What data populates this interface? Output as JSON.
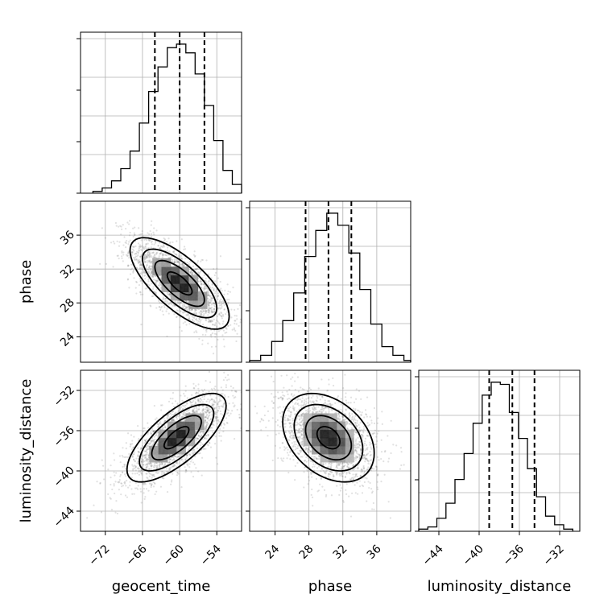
{
  "chart_data": {
    "type": "corner",
    "parameters": [
      {
        "name": "geocent_time",
        "label": "geocent_time",
        "range": [
          -76,
          -50
        ],
        "ticks": [
          -72,
          -66,
          -60,
          -54
        ],
        "quantiles": [
          -64.0,
          -60.0,
          -56.0
        ]
      },
      {
        "name": "phase",
        "label": "phase",
        "range": [
          21,
          40
        ],
        "ticks": [
          24,
          28,
          32,
          36
        ],
        "quantiles": [
          27.6,
          30.3,
          33.0
        ]
      },
      {
        "name": "luminosity_distance",
        "label": "luminosity_distance",
        "range": [
          -46,
          -30
        ],
        "ticks": [
          -44,
          -40,
          -36,
          -32
        ],
        "quantiles": [
          -39.0,
          -36.7,
          -34.5
        ]
      }
    ],
    "histograms": [
      {
        "param": "geocent_time",
        "bin_edges": [
          -74,
          -72.5,
          -71,
          -69.5,
          -68,
          -66.5,
          -65,
          -63.5,
          -62,
          -60.5,
          -59,
          -57.5,
          -56,
          -54.5,
          -53,
          -51.5,
          -50
        ],
        "counts": [
          1,
          3,
          7,
          14,
          24,
          40,
          58,
          72,
          83,
          85,
          80,
          68,
          50,
          30,
          13,
          5
        ]
      },
      {
        "param": "phase",
        "bin_edges": [
          21,
          22.3,
          23.6,
          24.9,
          26.2,
          27.5,
          28.8,
          30.1,
          31.4,
          32.7,
          34.0,
          35.3,
          36.6,
          37.9,
          39.2,
          40
        ],
        "counts": [
          1,
          4,
          12,
          24,
          40,
          61,
          76,
          86,
          79,
          63,
          42,
          22,
          9,
          4,
          1
        ]
      },
      {
        "param": "luminosity_distance",
        "bin_edges": [
          -46,
          -45.1,
          -44.2,
          -43.3,
          -42.4,
          -41.5,
          -40.6,
          -39.7,
          -38.8,
          -37.9,
          -37.0,
          -36.1,
          -35.2,
          -34.3,
          -33.4,
          -32.5,
          -31.6,
          -30.7
        ],
        "counts": [
          1,
          2,
          6,
          13,
          24,
          36,
          50,
          63,
          69,
          68,
          55,
          43,
          29,
          16,
          7,
          3,
          1
        ]
      }
    ],
    "pairs": [
      {
        "x": "geocent_time",
        "y": "phase",
        "center": [
          -60.0,
          30.3
        ],
        "sigma": [
          4.0,
          2.7
        ],
        "correlation": -0.72
      },
      {
        "x": "geocent_time",
        "y": "luminosity_distance",
        "center": [
          -60.5,
          -36.7
        ],
        "sigma": [
          4.0,
          2.2
        ],
        "correlation": 0.72
      },
      {
        "x": "phase",
        "y": "luminosity_distance",
        "center": [
          30.3,
          -36.7
        ],
        "sigma": [
          2.7,
          2.2
        ],
        "correlation": -0.35
      }
    ],
    "contour_levels_sigma": [
      0.5,
      1.0,
      1.5,
      2.0
    ],
    "grid": true
  }
}
